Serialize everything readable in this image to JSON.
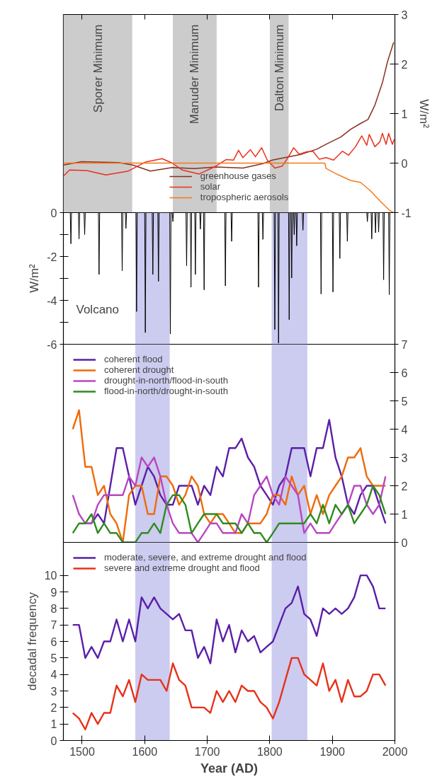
{
  "chart_data": [
    {
      "type": "line",
      "y2label": "W/m²",
      "xlim": [
        1470,
        2000
      ],
      "xticks": [
        1500,
        1600,
        1700,
        1800,
        1900,
        2000
      ],
      "y2lim": [
        -1,
        3
      ],
      "y2ticks": [
        -1,
        0,
        1,
        2,
        3
      ],
      "tick_labels": "y",
      "legend": "bottom",
      "bands": [
        {
          "axis": "x",
          "from": 1470,
          "to": 1580,
          "label": "Sporer Minimum",
          "color": "#cccccc"
        },
        {
          "axis": "x",
          "from": 1645,
          "to": 1715,
          "label": "Manuder Minimum",
          "color": "#cccccc"
        },
        {
          "axis": "x",
          "from": 1800,
          "to": 1830,
          "label": "Dalton Minimum",
          "color": "#cccccc"
        }
      ],
      "series": [
        {
          "name": "greenhouse gases",
          "color": "#8b2e1f",
          "axis": "y2",
          "x": [
            1470,
            1499,
            1558,
            1581,
            1609,
            1644,
            1679,
            1714,
            1757,
            1789,
            1804,
            1851,
            1875,
            1890,
            1914,
            1929,
            1945,
            1957,
            1968,
            1980,
            1988,
            1998
          ],
          "values": [
            -0.04,
            0.03,
            0.01,
            -0.04,
            -0.16,
            -0.09,
            -0.11,
            -0.08,
            -0.1,
            -0.01,
            0.06,
            0.18,
            0.28,
            0.38,
            0.53,
            0.68,
            0.8,
            0.88,
            1.17,
            1.62,
            2.04,
            2.44
          ]
        },
        {
          "name": "solar",
          "color": "#e8311a",
          "axis": "y2",
          "x": [
            1470,
            1480,
            1507,
            1538,
            1574,
            1601,
            1628,
            1644,
            1660,
            1687,
            1714,
            1730,
            1742,
            1750,
            1757,
            1769,
            1777,
            1787,
            1796,
            1808,
            1820,
            1830,
            1838,
            1847,
            1859,
            1869,
            1879,
            1890,
            1902,
            1916,
            1926,
            1937,
            1947,
            1955,
            1959,
            1968,
            1976,
            1980,
            1986,
            1990,
            1996,
            1999
          ],
          "values": [
            -0.26,
            -0.14,
            -0.15,
            -0.24,
            -0.16,
            0.02,
            0.09,
            0,
            -0.14,
            -0.22,
            -0.06,
            0.07,
            0.06,
            0.26,
            0.11,
            0.27,
            0.13,
            0.31,
            0.06,
            -0.1,
            -0.06,
            0.13,
            0.31,
            0.18,
            0.23,
            0.24,
            0.08,
            0.11,
            0.06,
            0.24,
            0.16,
            0.33,
            0.55,
            0.36,
            0.58,
            0.33,
            0.43,
            0.6,
            0.38,
            0.6,
            0.38,
            0.48
          ]
        },
        {
          "name": "tropospheric aerosols",
          "color": "#f47a1a",
          "axis": "y2",
          "x": [
            1470,
            1888,
            1890,
            1910,
            1929,
            1945,
            1961,
            1976,
            1992,
            1998
          ],
          "values": [
            0,
            0,
            -0.11,
            -0.24,
            -0.35,
            -0.39,
            -0.56,
            -0.76,
            -0.96,
            -1.0
          ]
        }
      ]
    },
    {
      "type": "line",
      "ylabel": "W/m²",
      "xlim": [
        1470,
        2000
      ],
      "xticks": [
        1500,
        1600,
        1700,
        1800,
        1900,
        2000
      ],
      "ylim": [
        -6,
        0
      ],
      "yticks": [
        -6,
        {
          "value": -5,
          "label": null
        },
        -4,
        {
          "value": -3,
          "label": null
        },
        -2,
        {
          "value": -1,
          "label": null
        },
        0
      ],
      "tick_labels": "y",
      "annotations": [
        "Volcano"
      ],
      "bands": [
        {
          "axis": "x",
          "from": 1585,
          "to": 1640,
          "color": "#cccbf0"
        },
        {
          "axis": "x",
          "from": 1803,
          "to": 1860,
          "color": "#cccbf0"
        }
      ],
      "series": [
        {
          "color": "#000000",
          "x": [
            1470,
            1481,
            1482,
            1483,
            1494,
            1495,
            1496,
            1503,
            1504,
            1505,
            1526,
            1527,
            1528,
            1563,
            1564,
            1565,
            1569,
            1570,
            1571,
            1586,
            1587,
            1588,
            1600,
            1601,
            1602,
            1612,
            1613,
            1614,
            1621,
            1622,
            1623,
            1640,
            1641,
            1642,
            1644,
            1645,
            1646,
            1666,
            1667,
            1668,
            1673,
            1674,
            1675,
            1680,
            1681,
            1682,
            1688,
            1689,
            1690,
            1694,
            1695,
            1696,
            1728,
            1729,
            1730,
            1738,
            1739,
            1740,
            1781,
            1782,
            1783,
            1788,
            1789,
            1790,
            1807,
            1808,
            1809,
            1813,
            1814,
            1815,
            1830,
            1831,
            1832,
            1834,
            1835,
            1836,
            1838,
            1839,
            1840,
            1842,
            1843,
            1844,
            1852,
            1853,
            1854,
            1881,
            1882,
            1883,
            1900,
            1901,
            1902,
            1911,
            1912,
            1913,
            1923,
            1924,
            1925,
            1955,
            1956,
            1957,
            1962,
            1963,
            1964,
            1968,
            1969,
            1970,
            1973,
            1974,
            1975,
            1981,
            1982,
            1983,
            1990,
            1991,
            1992,
            1999
          ],
          "values": [
            0,
            0,
            -1.42,
            0,
            0,
            -1.2,
            0,
            0,
            -1.0,
            0,
            0,
            -2.82,
            0,
            0,
            -2.65,
            0,
            0,
            -0.72,
            0,
            0,
            -4.51,
            0,
            0,
            -5.47,
            0,
            0,
            -2.82,
            0,
            0,
            -3.13,
            0,
            0,
            -5.53,
            0,
            0,
            -0.41,
            0,
            0,
            -2.42,
            0,
            0,
            -3.4,
            0,
            0,
            -2.82,
            0,
            0,
            -0.75,
            0,
            0,
            -3.52,
            0,
            0,
            -3.34,
            0,
            0,
            -1.31,
            0,
            0,
            -3.4,
            0,
            0,
            -1.22,
            0,
            0,
            -5.33,
            0,
            0,
            -5.95,
            0,
            0,
            -4.88,
            0,
            0,
            -2.98,
            0,
            0,
            -1.0,
            0,
            0,
            -1.51,
            0,
            0,
            -0.8,
            0,
            0,
            -3.71,
            0,
            0,
            -3.62,
            0,
            0,
            -2.09,
            0,
            0,
            -1.31,
            0,
            0,
            -0.41,
            0,
            0,
            -1.2,
            0,
            0,
            -0.92,
            0,
            0,
            -0.89,
            0,
            0,
            -3.06,
            0,
            0,
            -3.74,
            0,
            0
          ]
        }
      ]
    },
    {
      "type": "line",
      "xlim": [
        1470,
        2000
      ],
      "xticks": [
        1500,
        1600,
        1700,
        1800,
        1900,
        2000
      ],
      "y2lim": [
        0,
        7
      ],
      "y2ticks": [
        0,
        1,
        2,
        3,
        4,
        5,
        6,
        7
      ],
      "tick_labels": "y",
      "legend": "top left",
      "x": [
        1485,
        1495,
        1505,
        1515,
        1525,
        1535,
        1545,
        1555,
        1565,
        1575,
        1585,
        1595,
        1605,
        1615,
        1625,
        1635,
        1645,
        1655,
        1665,
        1675,
        1685,
        1695,
        1705,
        1715,
        1725,
        1735,
        1745,
        1755,
        1765,
        1775,
        1785,
        1795,
        1805,
        1815,
        1825,
        1835,
        1845,
        1855,
        1865,
        1875,
        1885,
        1895,
        1905,
        1915,
        1925,
        1935,
        1945,
        1955,
        1965,
        1975,
        1985
      ],
      "bands": [
        {
          "axis": "x",
          "from": 1585,
          "to": 1640,
          "color": "#cccbf0"
        },
        {
          "axis": "x",
          "from": 1803,
          "to": 1860,
          "color": "#cccbf0"
        }
      ],
      "series": [
        {
          "name": "coherent flood",
          "color": "#5a1fa8",
          "axis": "y2",
          "values": [
            null,
            null,
            0.67,
            0.67,
            1,
            0.67,
            2,
            3.33,
            3.33,
            2.33,
            1.33,
            2,
            2.67,
            2.33,
            1.67,
            1.33,
            1.33,
            2,
            2,
            2,
            1.33,
            2,
            1.67,
            2.67,
            2.33,
            3.33,
            3.33,
            3.67,
            3,
            2.67,
            2,
            1.67,
            1.33,
            2,
            2.33,
            3.33,
            3.33,
            3.33,
            2.33,
            3.33,
            3.33,
            4.33,
            3,
            2.33,
            1.33,
            1,
            1.67,
            2,
            2,
            1.33,
            0.67
          ]
        },
        {
          "name": "coherent drought",
          "color": "#f06a0a",
          "axis": "y2",
          "values": [
            4,
            4.67,
            2.67,
            2.67,
            1.67,
            2,
            1,
            0.67,
            0,
            1.67,
            2,
            2,
            1,
            1,
            2.33,
            2.33,
            2,
            1.33,
            1.67,
            2.33,
            2,
            1,
            0.67,
            1,
            1,
            0.67,
            0.33,
            0.33,
            0.67,
            0.67,
            0.67,
            1,
            1.67,
            1.67,
            1.33,
            2.33,
            1.67,
            2,
            1,
            1.67,
            1,
            1.67,
            2,
            2.33,
            3,
            3,
            3.33,
            2.33,
            2,
            2,
            2
          ]
        },
        {
          "name": "drought-in-north/flood-in-south",
          "color": "#b847c2",
          "axis": "y2",
          "values": [
            1.67,
            1,
            0.67,
            0.67,
            1.33,
            1.67,
            1.67,
            1.67,
            1.67,
            2.33,
            2,
            3,
            2.67,
            3,
            2.33,
            1.33,
            0.67,
            0.33,
            0.33,
            0.33,
            0,
            0.33,
            0.67,
            0.67,
            0.33,
            0.33,
            0.33,
            1,
            0.67,
            1.67,
            2,
            2.33,
            1.67,
            1.33,
            2.33,
            2,
            1.67,
            0.33,
            0.67,
            0.33,
            0.33,
            0.33,
            0.67,
            1,
            1.33,
            2,
            2,
            1.33,
            1,
            1.33,
            2.33
          ]
        },
        {
          "name": "flood-in-north/drought-in-south",
          "color": "#2e8b1e",
          "axis": "y2",
          "values": [
            0.33,
            0.67,
            0.67,
            1,
            0.33,
            0.67,
            0.33,
            0.33,
            0,
            0,
            0,
            0.33,
            0.33,
            0.67,
            0.33,
            1.33,
            1.67,
            1.67,
            1.33,
            0.33,
            0.67,
            1,
            1,
            1,
            0.67,
            0.67,
            0.67,
            0.33,
            0.67,
            0.33,
            0.33,
            0,
            0.33,
            0.67,
            0.67,
            0.67,
            0.67,
            0.67,
            1,
            0.67,
            1.33,
            0.67,
            1.33,
            1,
            1.33,
            0.67,
            1,
            1.33,
            2,
            1.67,
            1
          ]
        }
      ]
    },
    {
      "type": "line",
      "xlabel": "Year (AD)",
      "ylabel": "decadal frequency",
      "xlim": [
        1470,
        2000
      ],
      "xticks": [
        1500,
        1600,
        1700,
        1800,
        1900,
        2000
      ],
      "ylim": [
        0,
        12
      ],
      "yticks": [
        0,
        1,
        2,
        3,
        4,
        5,
        6,
        7,
        8,
        9,
        10
      ],
      "legend": "top left",
      "x": [
        1485,
        1495,
        1505,
        1515,
        1525,
        1535,
        1545,
        1555,
        1565,
        1575,
        1585,
        1595,
        1605,
        1615,
        1625,
        1635,
        1645,
        1655,
        1665,
        1675,
        1685,
        1695,
        1705,
        1715,
        1725,
        1735,
        1745,
        1755,
        1765,
        1775,
        1785,
        1795,
        1805,
        1815,
        1825,
        1835,
        1845,
        1855,
        1865,
        1875,
        1885,
        1895,
        1905,
        1915,
        1925,
        1935,
        1945,
        1955,
        1965,
        1975,
        1985
      ],
      "bands": [
        {
          "axis": "x",
          "from": 1585,
          "to": 1640,
          "color": "#cccbf0"
        },
        {
          "axis": "x",
          "from": 1803,
          "to": 1860,
          "color": "#cccbf0"
        }
      ],
      "series": [
        {
          "name": "moderate, severe, and extreme drought and flood",
          "color": "#5a1fa8",
          "values": [
            7,
            7,
            5,
            5.67,
            5,
            6,
            6,
            7.33,
            6,
            7.33,
            6,
            8.67,
            8,
            8.67,
            8,
            7.67,
            7.33,
            7.67,
            6.67,
            6.67,
            5,
            5.67,
            4.67,
            7.33,
            6,
            7,
            5.33,
            6.67,
            6,
            6.33,
            5.33,
            5.67,
            6,
            7,
            8,
            8.33,
            9.33,
            7.67,
            7.33,
            6.33,
            8,
            7.67,
            8,
            7.67,
            8,
            8.67,
            10,
            10,
            9.33,
            8,
            8
          ]
        },
        {
          "name": "severe and extreme drought and flood",
          "color": "#e8311a",
          "values": [
            1.67,
            1.33,
            0.67,
            1.67,
            1,
            1.67,
            1.67,
            3.33,
            2.67,
            3.67,
            2.33,
            4,
            3.67,
            3.67,
            3.67,
            3,
            4.67,
            3.67,
            3.33,
            2,
            2,
            2,
            1.67,
            3,
            2.33,
            3,
            2.33,
            3.33,
            3,
            3,
            2.33,
            2,
            1.33,
            2.33,
            3.67,
            5,
            5,
            4,
            3.67,
            3.33,
            4.67,
            3,
            3.67,
            2.33,
            3.67,
            2.67,
            2.67,
            3,
            4,
            4,
            3.33
          ]
        }
      ]
    }
  ]
}
